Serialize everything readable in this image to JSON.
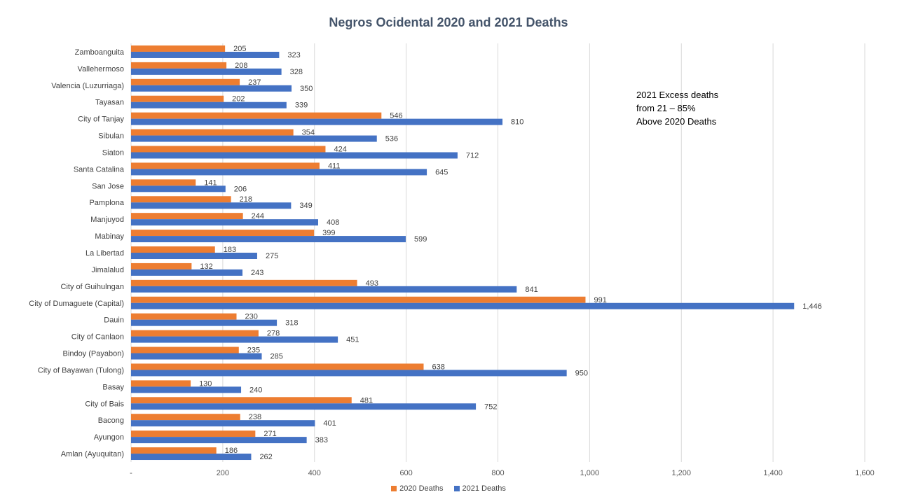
{
  "chart_data": {
    "type": "bar",
    "orientation": "horizontal",
    "title": "Negros Ocidental  2020 and 2021 Deaths",
    "annotation": "2021  Excess deaths\nfrom 21  – 85%\nAbove 2020 Deaths",
    "categories": [
      "Zamboanguita",
      "Vallehermoso",
      "Valencia (Luzurriaga)",
      "Tayasan",
      "City of Tanjay",
      "Sibulan",
      "Siaton",
      "Santa Catalina",
      "San Jose",
      "Pamplona",
      "Manjuyod",
      "Mabinay",
      "La Libertad",
      "Jimalalud",
      "City of Guihulngan",
      "City of Dumaguete (Capital)",
      "Dauin",
      "City of Canlaon",
      "Bindoy (Payabon)",
      "City of Bayawan (Tulong)",
      "Basay",
      "City of Bais",
      "Bacong",
      "Ayungon",
      "Amlan (Ayuquitan)"
    ],
    "series": [
      {
        "name": "2020 Deaths",
        "color": "#ED7D31",
        "values": [
          205,
          208,
          237,
          202,
          546,
          354,
          424,
          411,
          141,
          218,
          244,
          399,
          183,
          132,
          493,
          991,
          230,
          278,
          235,
          638,
          130,
          481,
          238,
          271,
          186
        ],
        "labels": [
          "205",
          "208",
          "237",
          "202",
          "546",
          "354",
          "424",
          "411",
          "141",
          "218",
          "244",
          "399",
          "183",
          "132",
          "493",
          "991",
          "230",
          "278",
          "235",
          "638",
          "130",
          "481",
          "238",
          "271",
          "186"
        ]
      },
      {
        "name": "2021 Deaths",
        "color": "#4472C4",
        "values": [
          323,
          328,
          350,
          339,
          810,
          536,
          712,
          645,
          206,
          349,
          408,
          599,
          275,
          243,
          841,
          1446,
          318,
          451,
          285,
          950,
          240,
          752,
          401,
          383,
          262
        ],
        "labels": [
          "323",
          "328",
          "350",
          "339",
          "810",
          "536",
          "712",
          "645",
          "206",
          "349",
          "408",
          "599",
          "275",
          "243",
          "841",
          "1,446",
          "318",
          "451",
          "285",
          "950",
          "240",
          "752",
          "401",
          "383",
          "262"
        ]
      }
    ],
    "xlim": [
      0,
      1600
    ],
    "xticks": [
      0,
      200,
      400,
      600,
      800,
      1000,
      1200,
      1400,
      1600
    ],
    "xtick_labels": [
      "-",
      "200",
      "400",
      "600",
      "800",
      "1,000",
      "1,200",
      "1,400",
      "1,600"
    ],
    "grid": true,
    "legend_position": "bottom"
  }
}
